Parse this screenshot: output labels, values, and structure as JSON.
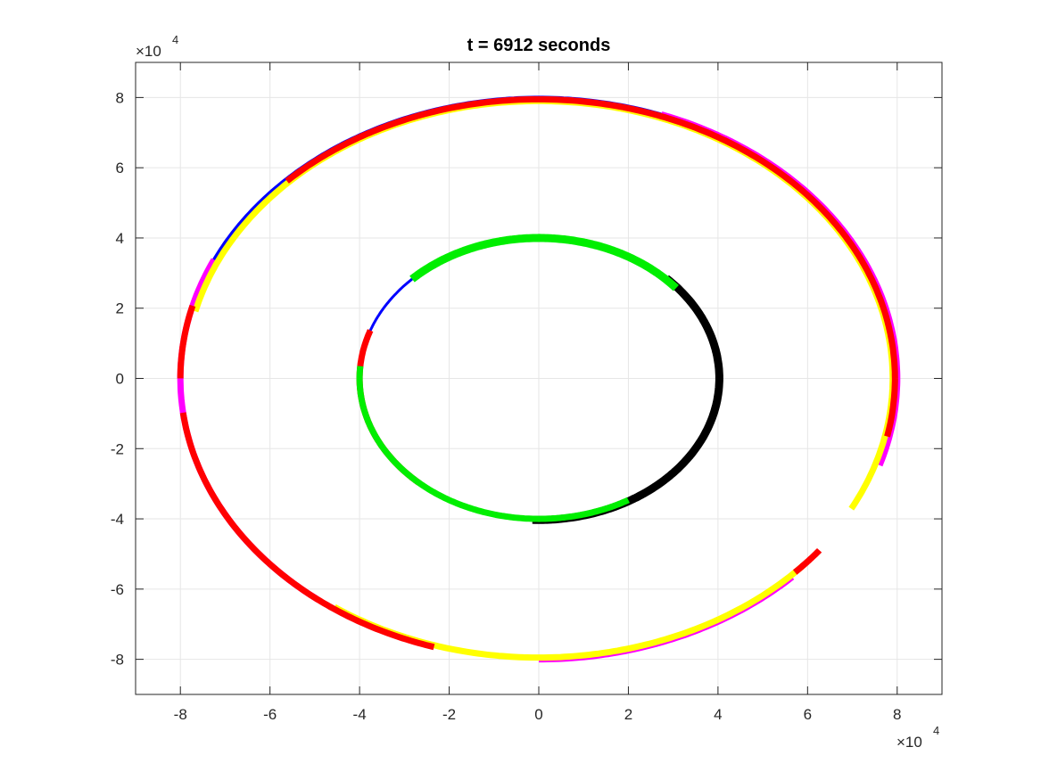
{
  "chart_data": {
    "type": "line",
    "title": "t = 6912 seconds",
    "xlabel": "",
    "ylabel": "",
    "xlim": [
      -90000,
      90000
    ],
    "ylim": [
      -90000,
      90000
    ],
    "x_ticks": [
      -80000,
      -60000,
      -40000,
      -20000,
      0,
      20000,
      40000,
      60000,
      80000
    ],
    "y_ticks": [
      -80000,
      -60000,
      -40000,
      -20000,
      0,
      20000,
      40000,
      60000,
      80000
    ],
    "x_tick_labels": [
      "-8",
      "-6",
      "-4",
      "-2",
      "0",
      "2",
      "4",
      "6",
      "8"
    ],
    "y_tick_labels": [
      "-8",
      "-6",
      "-4",
      "-2",
      "0",
      "2",
      "4",
      "6",
      "8"
    ],
    "x_exponent_label": "×10",
    "x_exponent_power": "4",
    "y_exponent_label": "×10",
    "y_exponent_power": "4",
    "grid": true,
    "legend": "none",
    "series": [
      {
        "color": "#0000ff",
        "width": 4,
        "orbit": {
          "cx": 0,
          "cy": 0,
          "rx": 80000,
          "ry": 80000
        },
        "theta_start_deg": 70,
        "theta_end_deg": 180
      },
      {
        "color": "#ff00ff",
        "width": 7,
        "orbit": {
          "cx": 0,
          "cy": 0,
          "rx": 80000,
          "ry": 80000
        },
        "theta_start_deg": 70,
        "theta_end_deg": -18
      },
      {
        "color": "#ff00ff",
        "width": 7,
        "orbit": {
          "cx": 0,
          "cy": 0,
          "rx": 80000,
          "ry": 80000
        },
        "theta_start_deg": -45,
        "theta_end_deg": -90
      },
      {
        "color": "#ff00ff",
        "width": 7,
        "orbit": {
          "cx": 0,
          "cy": 0,
          "rx": 80000,
          "ry": 80000
        },
        "theta_start_deg": 155,
        "theta_end_deg": 232
      },
      {
        "color": "#ffff00",
        "width": 7,
        "orbit": {
          "cx": 0,
          "cy": 0,
          "rx": 79000,
          "ry": 79000
        },
        "theta_start_deg": 166,
        "theta_end_deg": 90
      },
      {
        "color": "#ffff00",
        "width": 7,
        "orbit": {
          "cx": 0,
          "cy": 0,
          "rx": 79000,
          "ry": 79000
        },
        "theta_start_deg": 90,
        "theta_end_deg": -28
      },
      {
        "color": "#ffff00",
        "width": 7,
        "orbit": {
          "cx": 0,
          "cy": 0,
          "rx": 79500,
          "ry": 79500
        },
        "theta_start_deg": -42,
        "theta_end_deg": -125
      },
      {
        "color": "#ff0000",
        "width": 7,
        "orbit": {
          "cx": 0,
          "cy": 0,
          "rx": 80000,
          "ry": 80000
        },
        "theta_start_deg": -107,
        "theta_end_deg": -173
      },
      {
        "color": "#ff0000",
        "width": 7,
        "orbit": {
          "cx": 0,
          "cy": 0,
          "rx": 80000,
          "ry": 80000
        },
        "theta_start_deg": 180,
        "theta_end_deg": 165
      },
      {
        "color": "#ff0000",
        "width": 7,
        "orbit": {
          "cx": 0,
          "cy": 0,
          "rx": 79500,
          "ry": 79500
        },
        "theta_start_deg": 135,
        "theta_end_deg": 0
      },
      {
        "color": "#ff0000",
        "width": 7,
        "orbit": {
          "cx": 0,
          "cy": 0,
          "rx": 79500,
          "ry": 79500
        },
        "theta_start_deg": 0,
        "theta_end_deg": -12
      },
      {
        "color": "#ff0000",
        "width": 7,
        "orbit": {
          "cx": 0,
          "cy": 0,
          "rx": 79500,
          "ry": 79500
        },
        "theta_start_deg": -38,
        "theta_end_deg": -44
      },
      {
        "color": "#0000ff",
        "width": 3,
        "orbit": {
          "cx": 0,
          "cy": 0,
          "rx": 40000,
          "ry": 40000
        },
        "theta_start_deg": 0,
        "theta_end_deg": 360
      },
      {
        "color": "#ff0000",
        "width": 7,
        "orbit": {
          "cx": 0,
          "cy": 0,
          "rx": 40000,
          "ry": 40000
        },
        "theta_start_deg": 160,
        "theta_end_deg": 228
      },
      {
        "color": "#000000",
        "width": 9,
        "orbit": {
          "cx": 0,
          "cy": 0,
          "rx": 40300,
          "ry": 40300
        },
        "theta_start_deg": 45,
        "theta_end_deg": -92
      },
      {
        "color": "#00ee00",
        "width": 9,
        "orbit": {
          "cx": 0,
          "cy": 0,
          "rx": 40000,
          "ry": 40000
        },
        "theta_start_deg": 40,
        "theta_end_deg": 135
      },
      {
        "color": "#00ee00",
        "width": 7,
        "orbit": {
          "cx": 0,
          "cy": 0,
          "rx": 40000,
          "ry": 40000
        },
        "theta_start_deg": 175,
        "theta_end_deg": 300
      }
    ]
  }
}
